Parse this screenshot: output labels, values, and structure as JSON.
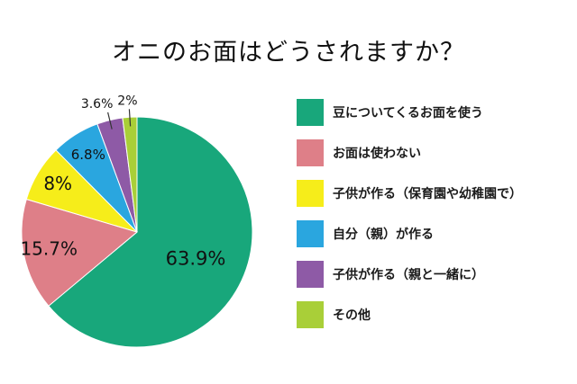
{
  "chart_data": {
    "type": "pie",
    "title": "オニのお面はどうされますか？",
    "categories": [
      "豆についてくるお面を使う",
      "お面は使わない",
      "子供が作る（保育園や幼稚園で）",
      "自分（親）が作る",
      "子供が作る（親と一緒に）",
      "その他"
    ],
    "values": [
      63.9,
      15.7,
      8,
      6.8,
      3.6,
      2
    ],
    "data_labels": [
      "63.9%",
      "15.7%",
      "8%",
      "6.8%",
      "3.6%",
      "2%"
    ],
    "colors": [
      "#18a77b",
      "#de7f88",
      "#f6ed1a",
      "#2aa6df",
      "#8e5aa6",
      "#a9cf38"
    ],
    "legend_position": "right"
  }
}
